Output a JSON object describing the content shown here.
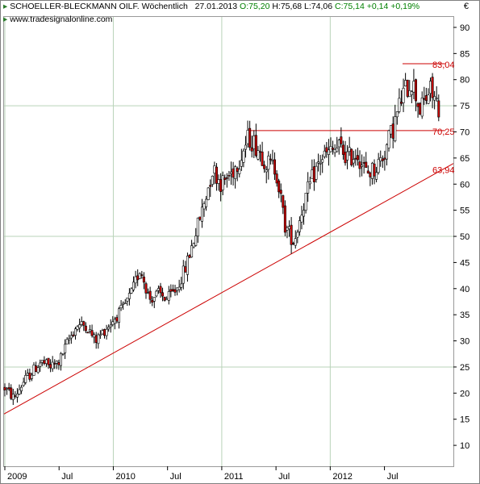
{
  "header": {
    "title": "SCHOELLER-BLECKMANN OILF.",
    "interval": "Wöchentlich",
    "date": "27.01.2013",
    "open": "O:75,20",
    "high": "H:75,68",
    "low": "L:74,06",
    "close": "C:75,14",
    "change": "+0,14",
    "change_pct": "+0,19%",
    "currency": "€",
    "source": "www.tradesignalonline.com",
    "colors": {
      "positive": "#008000",
      "text": "#000000"
    }
  },
  "chart_data": {
    "type": "candlestick",
    "y_axis": {
      "range": [
        6,
        92
      ],
      "ticks": [
        "10",
        "15",
        "20",
        "25",
        "30",
        "35",
        "40",
        "45",
        "50",
        "55",
        "60",
        "65",
        "70",
        "75",
        "80",
        "85",
        "90"
      ],
      "side": "right"
    },
    "x_axis": {
      "labels": [
        "2009",
        "Jul",
        "2010",
        "Jul",
        "2011",
        "Jul",
        "2012",
        "Jul"
      ]
    },
    "grid": true,
    "gridlines_y": [
      25,
      50,
      75
    ],
    "annotations": [
      {
        "type": "horizontal_line",
        "label": "83,04",
        "value": 83.04,
        "from": "2012 Sep",
        "to": "2013 Jan",
        "color": "#cc0000"
      },
      {
        "type": "horizontal_line",
        "label": "70,25",
        "value": 70.25,
        "from": "2011 Apr",
        "to": "2013 Jan",
        "color": "#cc0000"
      },
      {
        "type": "trendline",
        "label": "63,94",
        "start_value": 16.0,
        "end_value": 63.94,
        "from": "2009 Jan",
        "to": "2013 Jan",
        "color": "#cc0000"
      }
    ],
    "series": [
      {
        "style": "weekly candlesticks",
        "approx_close_path": [
          {
            "x": "2009 Jan",
            "y": 21
          },
          {
            "x": "2009 Feb",
            "y": 19
          },
          {
            "x": "2009 Mar",
            "y": 22
          },
          {
            "x": "2009 Apr",
            "y": 24
          },
          {
            "x": "2009 May",
            "y": 26
          },
          {
            "x": "2009 Jun",
            "y": 25
          },
          {
            "x": "2009 Jul",
            "y": 26
          },
          {
            "x": "2009 Aug",
            "y": 30
          },
          {
            "x": "2009 Sep",
            "y": 33
          },
          {
            "x": "2009 Oct",
            "y": 33
          },
          {
            "x": "2009 Nov",
            "y": 30
          },
          {
            "x": "2009 Dec",
            "y": 32
          },
          {
            "x": "2010 Jan",
            "y": 34
          },
          {
            "x": "2010 Feb",
            "y": 36
          },
          {
            "x": "2010 Mar",
            "y": 39
          },
          {
            "x": "2010 Apr",
            "y": 44
          },
          {
            "x": "2010 May",
            "y": 38
          },
          {
            "x": "2010 Jun",
            "y": 39
          },
          {
            "x": "2010 Jul",
            "y": 38
          },
          {
            "x": "2010 Aug",
            "y": 40
          },
          {
            "x": "2010 Sep",
            "y": 44
          },
          {
            "x": "2010 Oct",
            "y": 50
          },
          {
            "x": "2010 Nov",
            "y": 56
          },
          {
            "x": "2010 Dec",
            "y": 63
          },
          {
            "x": "2011 Jan",
            "y": 60
          },
          {
            "x": "2011 Feb",
            "y": 62
          },
          {
            "x": "2011 Mar",
            "y": 65
          },
          {
            "x": "2011 Apr",
            "y": 69
          },
          {
            "x": "2011 May",
            "y": 67
          },
          {
            "x": "2011 Jun",
            "y": 64
          },
          {
            "x": "2011 Jul",
            "y": 63
          },
          {
            "x": "2011 Aug",
            "y": 52
          },
          {
            "x": "2011 Sep",
            "y": 49
          },
          {
            "x": "2011 Oct",
            "y": 56
          },
          {
            "x": "2011 Nov",
            "y": 61
          },
          {
            "x": "2011 Dec",
            "y": 65
          },
          {
            "x": "2012 Jan",
            "y": 66
          },
          {
            "x": "2012 Feb",
            "y": 67
          },
          {
            "x": "2012 Mar",
            "y": 65
          },
          {
            "x": "2012 Apr",
            "y": 66
          },
          {
            "x": "2012 May",
            "y": 62
          },
          {
            "x": "2012 Jun",
            "y": 63
          },
          {
            "x": "2012 Jul",
            "y": 66
          },
          {
            "x": "2012 Aug",
            "y": 71
          },
          {
            "x": "2012 Sep",
            "y": 77
          },
          {
            "x": "2012 Oct",
            "y": 80
          },
          {
            "x": "2012 Nov",
            "y": 74
          },
          {
            "x": "2012 Dec",
            "y": 78
          },
          {
            "x": "2013 Jan",
            "y": 75
          }
        ]
      }
    ]
  }
}
